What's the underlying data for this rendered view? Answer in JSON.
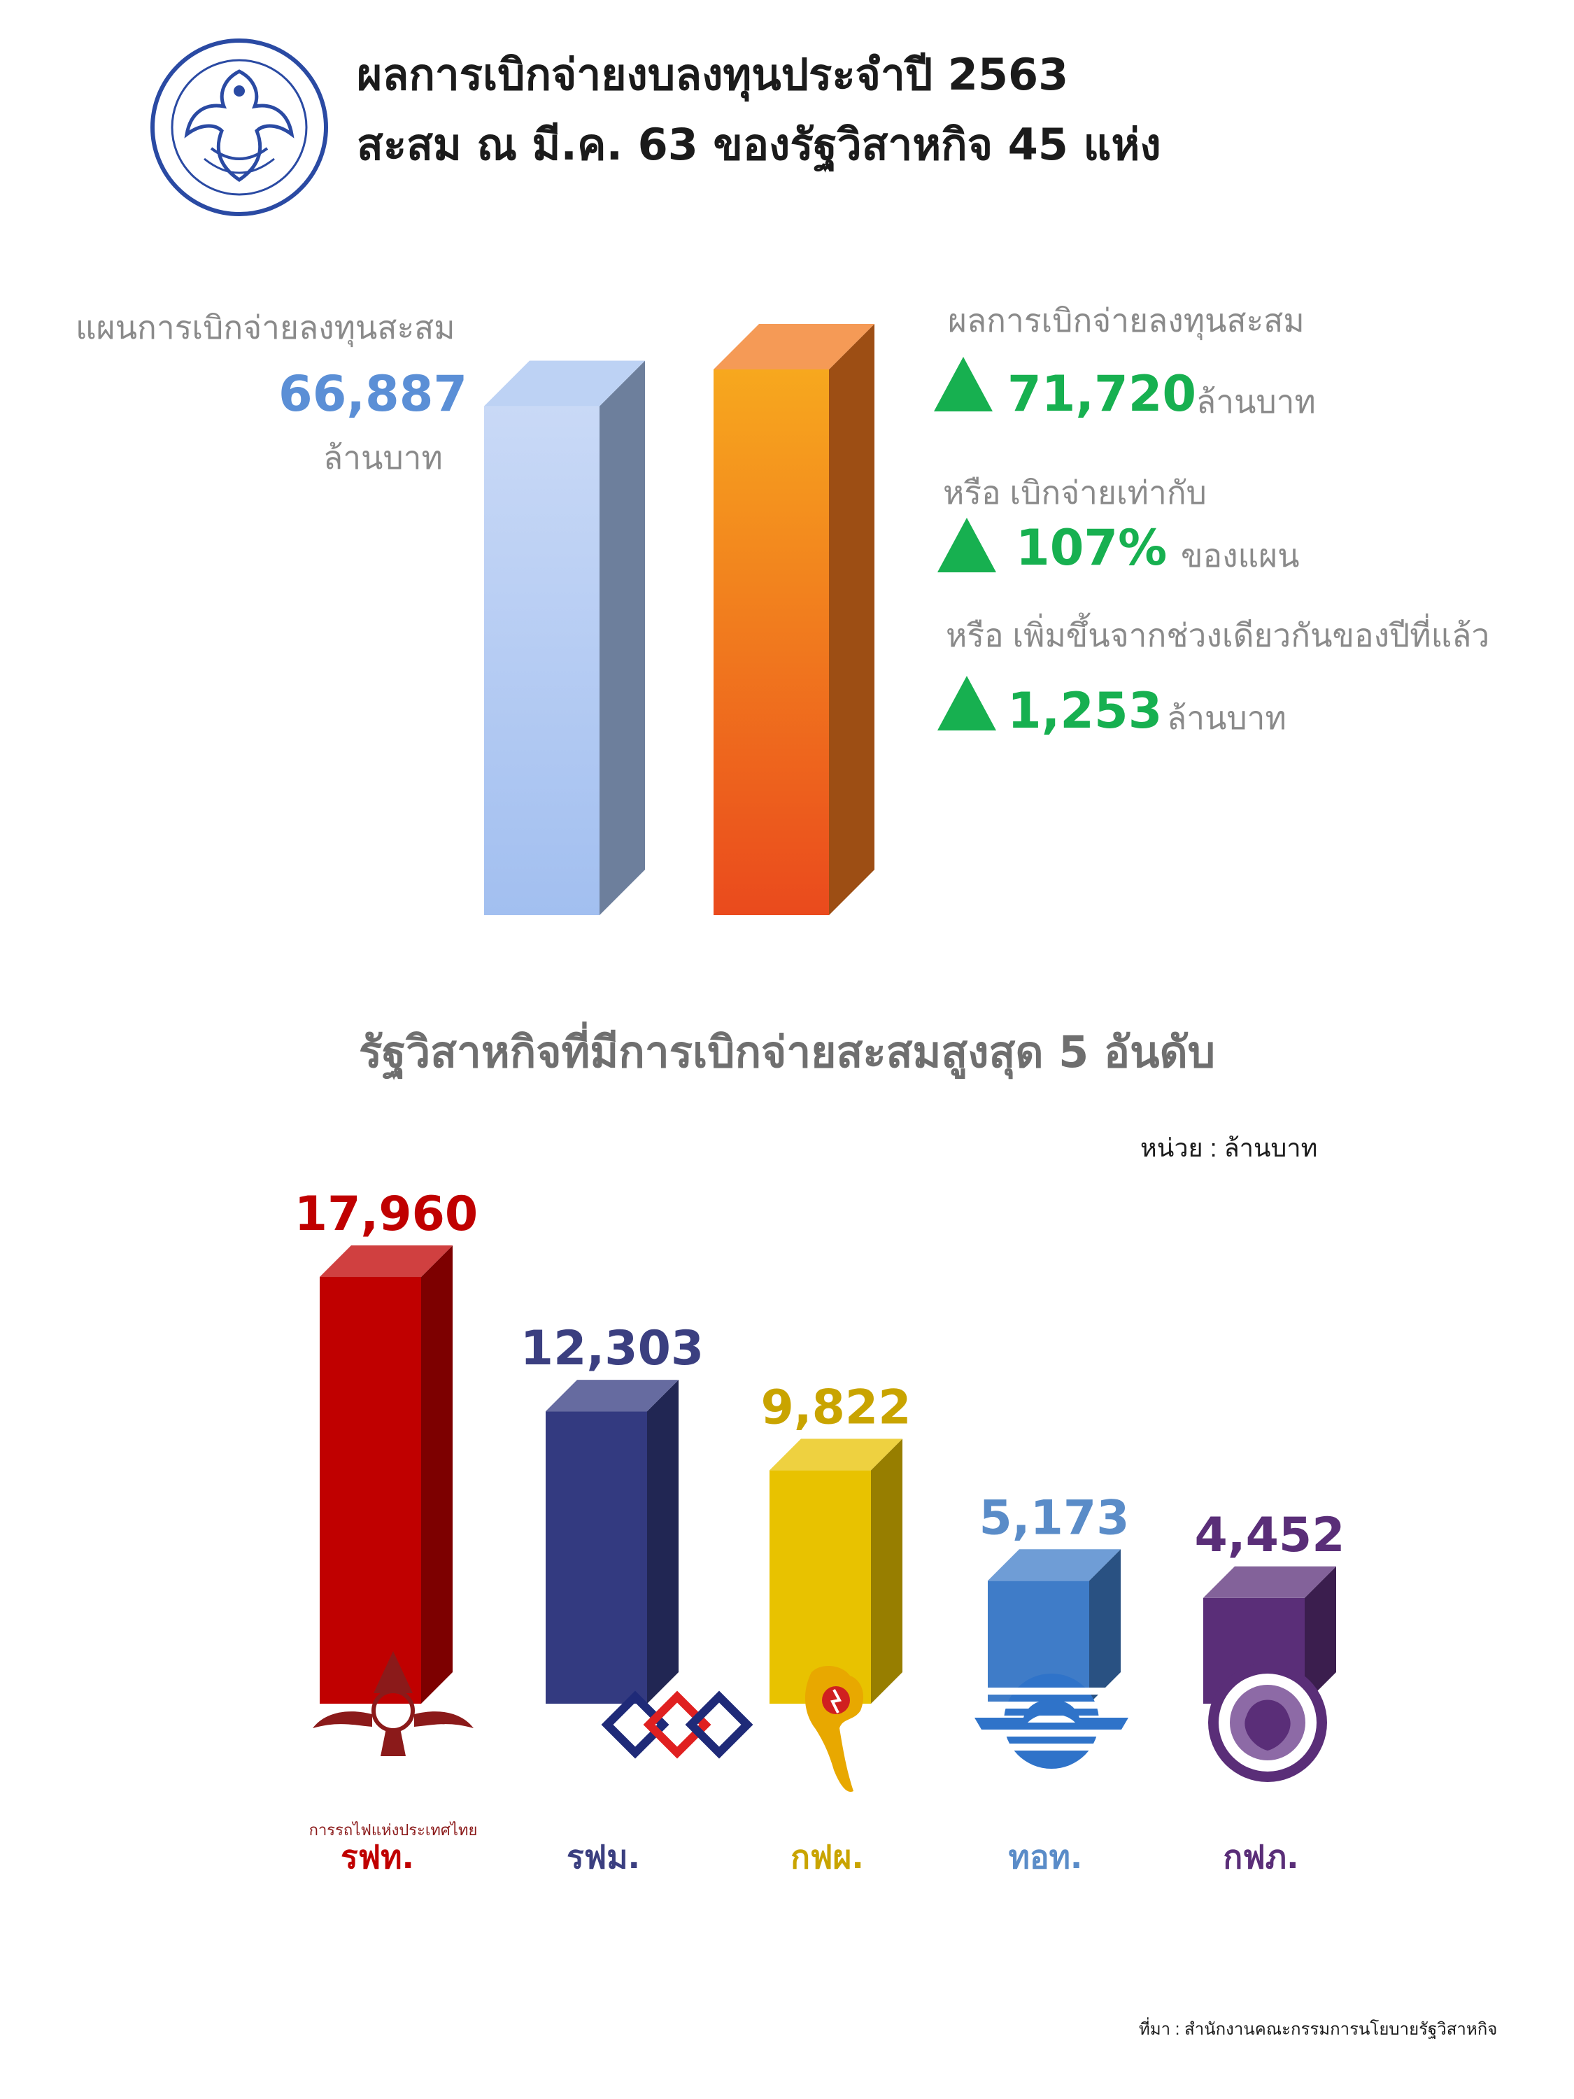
{
  "header": {
    "title_line1": "ผลการเบิกจ่ายงบลงทุนประจำปี 2563",
    "title_line2": "สะสม ณ มี.ค. 63 ของรัฐวิสาหกิจ 45 แห่ง",
    "logo_icon": "state-enterprise-policy-office-seal-icon",
    "logo_color": "#2a4aa3"
  },
  "summary": {
    "plan_label": "แผนการเบิกจ่ายลงทุนสะสม",
    "plan_value": "66,887",
    "plan_unit": "ล้านบาท",
    "result_label": "ผลการเบิกจ่ายลงทุนสะสม",
    "result_value": "71,720",
    "result_unit": "ล้านบาท",
    "ratio_label": "หรือ เบิกจ่ายเท่ากับ",
    "ratio_value": "107%",
    "ratio_unit": "ของแผน",
    "increase_label": "หรือ เพิ่มขึ้นจากช่วงเดียวกันของปีที่แล้ว",
    "increase_value": "1,253",
    "increase_unit": "ล้านบาท",
    "up_icon": "up-triangle-icon",
    "plan_color": "#5b8fd6",
    "green_color": "#17b050"
  },
  "chart_data": [
    {
      "type": "bar",
      "categories": [
        "แผนการเบิกจ่ายลงทุนสะสม",
        "ผลการเบิกจ่ายลงทุนสะสม"
      ],
      "values": [
        66887,
        71720
      ],
      "colors": [
        "#a7c3f0",
        "#f2781e"
      ]
    },
    {
      "type": "bar",
      "title": "รัฐวิสาหกิจที่มีการเบิกจ่ายสะสมสูงสุด 5 อันดับ",
      "unit_label": "หน่วย : ล้านบาท",
      "categories": [
        "รฟท.",
        "รฟม.",
        "กฟผ.",
        "ทอท.",
        "กฟภ."
      ],
      "values": [
        17960,
        12303,
        9822,
        5173,
        4452
      ],
      "value_labels": [
        "17,960",
        "12,303",
        "9,822",
        "5,173",
        "4,452"
      ],
      "colors": [
        "#c00000",
        "#333a80",
        "#e8c200",
        "#3f7cc8",
        "#5a2e78"
      ],
      "label_colors": [
        "#c00000",
        "#3b3f80",
        "#c9a400",
        "#5a8cc8",
        "#5a2e78"
      ],
      "logos": [
        {
          "icon": "srt-winged-emblem-icon",
          "caption": "การรถไฟแห่งประเทศไทย"
        },
        {
          "icon": "mrta-diamond-logo-icon"
        },
        {
          "icon": "egat-thailand-map-logo-icon"
        },
        {
          "icon": "aot-globe-logo-icon"
        },
        {
          "icon": "pea-round-seal-icon"
        }
      ]
    }
  ],
  "footer": {
    "source": "ที่มา : สำนักงานคณะกรรมการนโยบายรัฐวิสาหกิจ"
  }
}
